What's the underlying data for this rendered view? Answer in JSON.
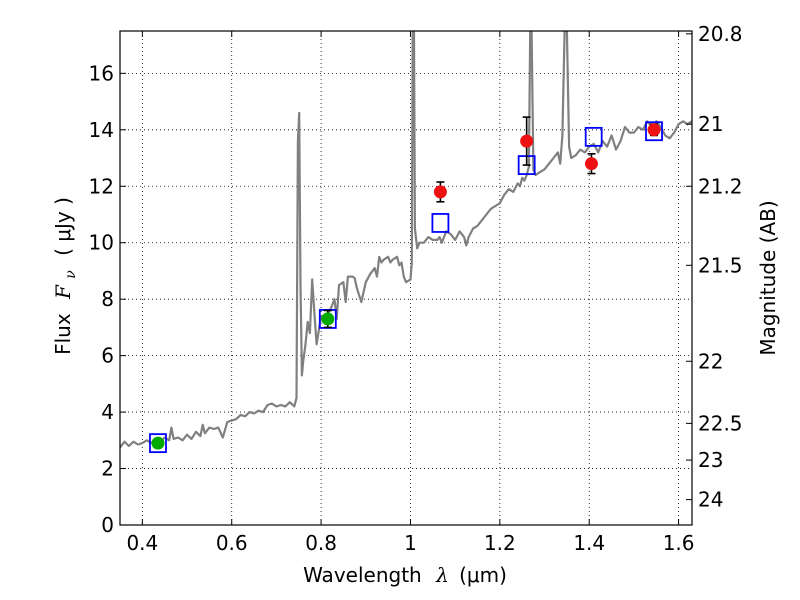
{
  "chart_data": {
    "type": "line",
    "xlabel": "Wavelength",
    "xlabel_symbol": "λ",
    "xlabel_unit": "(μm)",
    "ylabel": "Flux",
    "ylabel_symbol": "F",
    "ylabel_sub": "ν",
    "ylabel_unit": "( μJy )",
    "y2label": "Magnitude (AB)",
    "xlim": [
      0.35,
      1.63
    ],
    "ylim": [
      0,
      17.5
    ],
    "grid": true,
    "x_ticks": [
      0.4,
      0.6,
      0.8,
      1.0,
      1.2,
      1.4,
      1.6
    ],
    "x_tick_labels": [
      "0.4",
      "0.6",
      "0.8",
      "1",
      "1.2",
      "1.4",
      "1.6"
    ],
    "y_ticks": [
      0,
      2,
      4,
      6,
      8,
      10,
      12,
      14,
      16
    ],
    "y_tick_labels": [
      "0",
      "2",
      "4",
      "6",
      "8",
      "10",
      "12",
      "14",
      "16"
    ],
    "y2_ticks": [
      {
        "label": "20.8",
        "flux": 17.4
      },
      {
        "label": "21",
        "flux": 14.2
      },
      {
        "label": "21.2",
        "flux": 12.0
      },
      {
        "label": "21.5",
        "flux": 9.2
      },
      {
        "label": "22",
        "flux": 5.8
      },
      {
        "label": "22.5",
        "flux": 3.6
      },
      {
        "label": "23",
        "flux": 2.3
      },
      {
        "label": "24",
        "flux": 0.9
      }
    ],
    "series": [
      {
        "style": "line",
        "color": "#808080",
        "points": [
          [
            0.35,
            2.75
          ],
          [
            0.36,
            2.95
          ],
          [
            0.37,
            2.8
          ],
          [
            0.38,
            2.95
          ],
          [
            0.39,
            2.85
          ],
          [
            0.4,
            2.9
          ],
          [
            0.41,
            3.0
          ],
          [
            0.42,
            2.9
          ],
          [
            0.43,
            3.05
          ],
          [
            0.44,
            2.95
          ],
          [
            0.45,
            3.1
          ],
          [
            0.46,
            3.0
          ],
          [
            0.465,
            3.45
          ],
          [
            0.47,
            3.05
          ],
          [
            0.48,
            3.1
          ],
          [
            0.49,
            3.0
          ],
          [
            0.5,
            3.2
          ],
          [
            0.51,
            3.05
          ],
          [
            0.52,
            3.3
          ],
          [
            0.53,
            3.15
          ],
          [
            0.535,
            3.55
          ],
          [
            0.54,
            3.25
          ],
          [
            0.55,
            3.45
          ],
          [
            0.56,
            3.4
          ],
          [
            0.57,
            3.45
          ],
          [
            0.58,
            3.1
          ],
          [
            0.59,
            3.65
          ],
          [
            0.6,
            3.7
          ],
          [
            0.61,
            3.75
          ],
          [
            0.62,
            3.9
          ],
          [
            0.63,
            3.85
          ],
          [
            0.64,
            4.0
          ],
          [
            0.65,
            3.95
          ],
          [
            0.66,
            4.05
          ],
          [
            0.67,
            4.0
          ],
          [
            0.68,
            4.25
          ],
          [
            0.69,
            4.3
          ],
          [
            0.7,
            4.2
          ],
          [
            0.71,
            4.25
          ],
          [
            0.72,
            4.2
          ],
          [
            0.73,
            4.35
          ],
          [
            0.74,
            4.2
          ],
          [
            0.745,
            4.5
          ],
          [
            0.748,
            13.6
          ],
          [
            0.751,
            14.6
          ],
          [
            0.754,
            8.5
          ],
          [
            0.757,
            5.3
          ],
          [
            0.76,
            5.8
          ],
          [
            0.765,
            6.4
          ],
          [
            0.77,
            7.2
          ],
          [
            0.775,
            6.8
          ],
          [
            0.78,
            8.7
          ],
          [
            0.785,
            7.5
          ],
          [
            0.79,
            6.4
          ],
          [
            0.8,
            7.4
          ],
          [
            0.81,
            7.4
          ],
          [
            0.82,
            7.6
          ],
          [
            0.83,
            8.0
          ],
          [
            0.835,
            7.3
          ],
          [
            0.84,
            8.5
          ],
          [
            0.85,
            8.6
          ],
          [
            0.855,
            7.9
          ],
          [
            0.86,
            8.8
          ],
          [
            0.87,
            8.8
          ],
          [
            0.875,
            8.75
          ],
          [
            0.88,
            8.4
          ],
          [
            0.89,
            7.9
          ],
          [
            0.9,
            8.6
          ],
          [
            0.91,
            8.9
          ],
          [
            0.92,
            9.1
          ],
          [
            0.925,
            8.8
          ],
          [
            0.93,
            9.5
          ],
          [
            0.935,
            9.3
          ],
          [
            0.94,
            9.4
          ],
          [
            0.95,
            9.5
          ],
          [
            0.955,
            9.3
          ],
          [
            0.96,
            9.4
          ],
          [
            0.97,
            9.5
          ],
          [
            0.975,
            9.2
          ],
          [
            0.98,
            9.3
          ],
          [
            0.985,
            8.8
          ],
          [
            0.99,
            8.6
          ],
          [
            1.0,
            8.7
          ],
          [
            1.003,
            9.3
          ],
          [
            1.005,
            17.5
          ],
          [
            1.008,
            17.5
          ],
          [
            1.01,
            10.5
          ],
          [
            1.015,
            9.8
          ],
          [
            1.02,
            10.0
          ],
          [
            1.03,
            10.0
          ],
          [
            1.04,
            10.2
          ],
          [
            1.05,
            10.1
          ],
          [
            1.06,
            10.1
          ],
          [
            1.065,
            10.2
          ],
          [
            1.07,
            10.0
          ],
          [
            1.08,
            10.4
          ],
          [
            1.09,
            10.3
          ],
          [
            1.1,
            10.1
          ],
          [
            1.11,
            10.4
          ],
          [
            1.12,
            10.2
          ],
          [
            1.125,
            9.9
          ],
          [
            1.13,
            10.2
          ],
          [
            1.14,
            10.5
          ],
          [
            1.15,
            10.6
          ],
          [
            1.16,
            10.8
          ],
          [
            1.17,
            11.0
          ],
          [
            1.18,
            11.2
          ],
          [
            1.19,
            11.3
          ],
          [
            1.2,
            11.4
          ],
          [
            1.21,
            11.7
          ],
          [
            1.22,
            11.9
          ],
          [
            1.23,
            11.8
          ],
          [
            1.24,
            12.1
          ],
          [
            1.245,
            12.0
          ],
          [
            1.25,
            12.3
          ],
          [
            1.255,
            12.2
          ],
          [
            1.26,
            12.4
          ],
          [
            1.265,
            12.7
          ],
          [
            1.268,
            17.5
          ],
          [
            1.271,
            17.5
          ],
          [
            1.275,
            12.6
          ],
          [
            1.28,
            12.4
          ],
          [
            1.29,
            12.5
          ],
          [
            1.3,
            12.6
          ],
          [
            1.31,
            12.8
          ],
          [
            1.32,
            13.0
          ],
          [
            1.33,
            13.2
          ],
          [
            1.335,
            12.8
          ],
          [
            1.34,
            13.8
          ],
          [
            1.345,
            17.5
          ],
          [
            1.35,
            17.5
          ],
          [
            1.355,
            13.4
          ],
          [
            1.36,
            13.0
          ],
          [
            1.37,
            13.1
          ],
          [
            1.38,
            13.3
          ],
          [
            1.39,
            13.2
          ],
          [
            1.4,
            13.4
          ],
          [
            1.41,
            13.5
          ],
          [
            1.42,
            13.2
          ],
          [
            1.43,
            13.6
          ],
          [
            1.44,
            13.4
          ],
          [
            1.45,
            13.8
          ],
          [
            1.46,
            13.3
          ],
          [
            1.47,
            13.6
          ],
          [
            1.48,
            14.1
          ],
          [
            1.49,
            13.9
          ],
          [
            1.5,
            13.9
          ],
          [
            1.51,
            14.1
          ],
          [
            1.52,
            14.0
          ],
          [
            1.53,
            14.3
          ],
          [
            1.54,
            14.1
          ],
          [
            1.55,
            14.3
          ],
          [
            1.56,
            14.1
          ],
          [
            1.57,
            13.8
          ],
          [
            1.58,
            13.7
          ],
          [
            1.59,
            13.9
          ],
          [
            1.6,
            14.2
          ],
          [
            1.61,
            14.3
          ],
          [
            1.62,
            14.2
          ],
          [
            1.63,
            14.3
          ]
        ]
      },
      {
        "style": "open-square",
        "color": "#0000ff",
        "points": [
          [
            0.435,
            2.9
          ],
          [
            0.815,
            7.3
          ],
          [
            1.067,
            10.7
          ],
          [
            1.26,
            12.75
          ],
          [
            1.41,
            13.75
          ],
          [
            1.545,
            13.95
          ]
        ]
      },
      {
        "style": "filled-circle",
        "color": "#00aa00",
        "points": [
          {
            "x": 0.435,
            "y": 2.9,
            "err": 0.15
          },
          {
            "x": 0.815,
            "y": 7.3,
            "err": 0.3
          }
        ]
      },
      {
        "style": "filled-circle",
        "color": "#ee1111",
        "points": [
          {
            "x": 1.067,
            "y": 11.8,
            "err": 0.35
          },
          {
            "x": 1.26,
            "y": 13.6,
            "err": 0.85
          },
          {
            "x": 1.405,
            "y": 12.8,
            "err": 0.35
          },
          {
            "x": 1.545,
            "y": 14.0,
            "err": 0.2
          }
        ]
      }
    ]
  }
}
